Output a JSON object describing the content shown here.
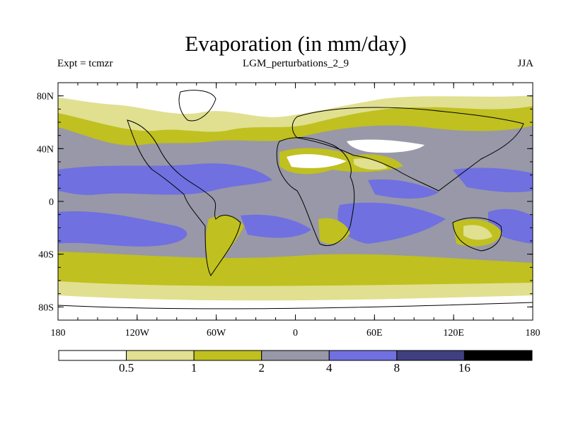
{
  "title": "Evaporation (in mm/day)",
  "experiment": "Expt = tcmzr",
  "run_name": "LGM_perturbations_2_9",
  "season": "JJA",
  "chart_data": {
    "type": "filled-contour map",
    "variable": "Evaporation",
    "units": "mm/day",
    "season": "JJA",
    "lon_range": [
      -180,
      180
    ],
    "lat_range": [
      -90,
      90
    ],
    "lat_ticks": [
      "80N",
      "40N",
      "0",
      "40S",
      "80S"
    ],
    "lon_ticks": [
      "180",
      "120W",
      "60W",
      "0",
      "60E",
      "120E",
      "180"
    ],
    "levels": [
      "0.5",
      "1",
      "2",
      "4",
      "8",
      "16"
    ],
    "colors": [
      "#ffffff",
      "#e0e090",
      "#c0c020",
      "#9898a8",
      "#7070e0",
      "#404080",
      "#000000"
    ],
    "approx_regions": [
      {
        "region": "Arctic / Greenland / Antarctica",
        "class": "<0.5"
      },
      {
        "region": "Sahara / Arabia / Central Asia",
        "class": "<0.5"
      },
      {
        "region": "Southern Ocean & high-latitude land",
        "class": "0.5–2"
      },
      {
        "region": "Mid-latitude oceans",
        "class": "2–4"
      },
      {
        "region": "Subtropical oceans",
        "class": "4–8"
      }
    ]
  }
}
